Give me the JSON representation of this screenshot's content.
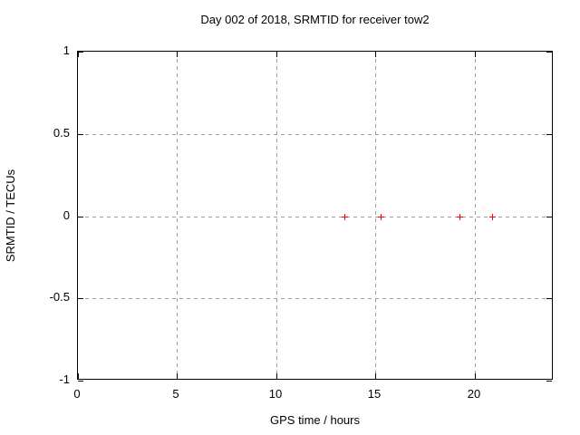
{
  "chart_data": {
    "type": "scatter",
    "title": "Day 002 of 2018, SRMTID for receiver tow2",
    "xlabel": "GPS time / hours",
    "ylabel": "SRMTID / TECUs",
    "xlim": [
      0,
      24
    ],
    "ylim": [
      -1,
      1
    ],
    "xticks": [
      0,
      5,
      10,
      15,
      20
    ],
    "xtick_labels": [
      "0",
      "5",
      "10",
      "15",
      "20"
    ],
    "yticks": [
      -1,
      -0.5,
      0,
      0.5,
      1
    ],
    "ytick_labels": [
      "-1",
      "-0.5",
      "0",
      "0.5",
      "1"
    ],
    "grid": true,
    "grid_style": "dashed",
    "legend": "none",
    "series": [
      {
        "name": "SRMTID",
        "marker": "plus",
        "color": "#ff0000",
        "points": [
          {
            "x": 13.45,
            "y": 0.0
          },
          {
            "x": 15.25,
            "y": 0.0
          },
          {
            "x": 19.25,
            "y": 0.0
          },
          {
            "x": 20.9,
            "y": 0.0
          }
        ]
      }
    ],
    "colors": {
      "background": "#ffffff",
      "border": "#000000",
      "grid": "#9c9c9c",
      "text": "#000000",
      "marker": "#ff0000"
    }
  }
}
